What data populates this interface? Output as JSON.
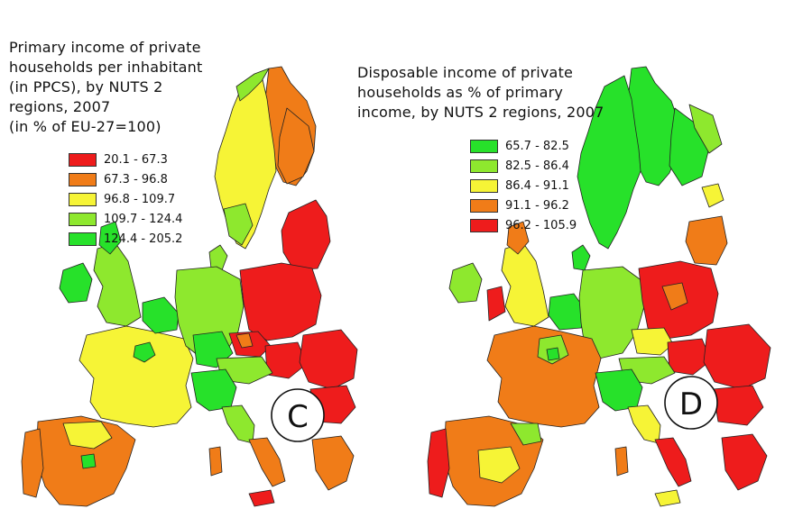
{
  "colors": {
    "red": "#ee1c1c",
    "orange": "#f07c18",
    "yellow": "#f6f436",
    "lightgreen": "#8ee82e",
    "green": "#27e12a",
    "border": "#222222"
  },
  "map_left": {
    "title": "Primary income of private\nhouseholds per inhabitant\n(in PPCS), by NUTS 2\nregions, 2007\n(in % of EU-27=100)",
    "label": "C",
    "legend": [
      {
        "label": "20.1 - 67.3",
        "color": "#ee1c1c"
      },
      {
        "label": "67.3 - 96.8",
        "color": "#f07c18"
      },
      {
        "label": "96.8 - 109.7",
        "color": "#f6f436"
      },
      {
        "label": "109.7 - 124.4",
        "color": "#8ee82e"
      },
      {
        "label": "124.4 - 205.2",
        "color": "#27e12a"
      }
    ]
  },
  "map_right": {
    "title": "Disposable income of private\nhouseholds as % of primary\nincome, by NUTS 2 regions, 2007",
    "label": "D",
    "legend": [
      {
        "label": "65.7 - 82.5",
        "color": "#27e12a"
      },
      {
        "label": "82.5 - 86.4",
        "color": "#8ee82e"
      },
      {
        "label": "86.4 - 91.1",
        "color": "#f6f436"
      },
      {
        "label": "91.1 - 96.2",
        "color": "#f07c18"
      },
      {
        "label": "96.2 - 105.9",
        "color": "#ee1c1c"
      }
    ]
  }
}
